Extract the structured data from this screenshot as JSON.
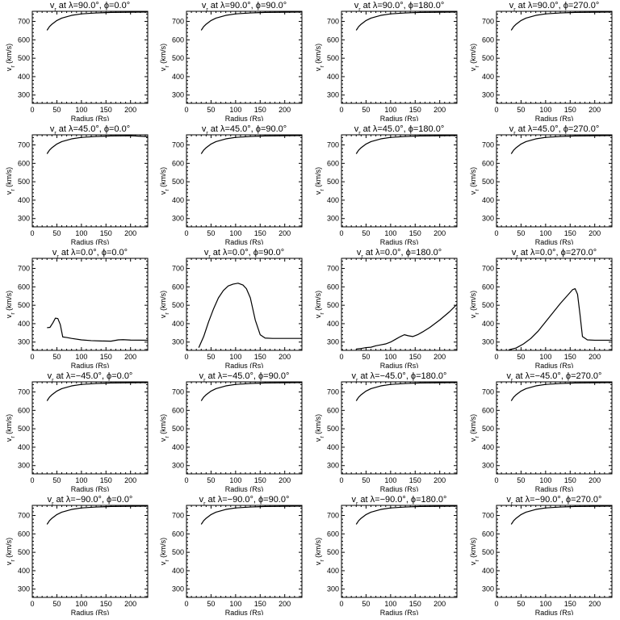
{
  "common": {
    "xlabel": "Radius (Rs)",
    "ylabel": "v<sub>r</sub> (km/s)",
    "xticks": [
      0,
      50,
      100,
      150,
      200
    ],
    "yticks": [
      300,
      400,
      500,
      600,
      700
    ],
    "xlim": [
      0,
      235
    ],
    "ylim": [
      255,
      755
    ]
  },
  "chart_data": [
    {
      "type": "line",
      "title": "v<sub>r</sub> at λ=90.0°, ϕ=0.0°",
      "x": [
        30,
        35,
        40,
        50,
        60,
        80,
        100,
        130,
        160,
        200,
        235
      ],
      "y": [
        652,
        672,
        685,
        705,
        718,
        733,
        741,
        746,
        749,
        750,
        751
      ]
    },
    {
      "type": "line",
      "title": "v<sub>r</sub> at λ=90.0°, ϕ=90.0°",
      "x": [
        30,
        35,
        40,
        50,
        60,
        80,
        100,
        130,
        160,
        200,
        235
      ],
      "y": [
        652,
        672,
        685,
        705,
        718,
        733,
        741,
        746,
        749,
        750,
        751
      ]
    },
    {
      "type": "line",
      "title": "v<sub>r</sub> at λ=90.0°, ϕ=180.0°",
      "x": [
        30,
        35,
        40,
        50,
        60,
        80,
        100,
        130,
        160,
        200,
        235
      ],
      "y": [
        652,
        672,
        685,
        705,
        718,
        733,
        741,
        746,
        749,
        750,
        751
      ]
    },
    {
      "type": "line",
      "title": "v<sub>r</sub> at λ=90.0°, ϕ=270.0°",
      "x": [
        30,
        35,
        40,
        50,
        60,
        80,
        100,
        130,
        160,
        200,
        235
      ],
      "y": [
        652,
        672,
        685,
        705,
        718,
        733,
        741,
        746,
        749,
        750,
        751
      ]
    },
    {
      "type": "line",
      "title": "v<sub>r</sub> at λ=45.0°, ϕ=0.0°",
      "x": [
        30,
        35,
        40,
        50,
        60,
        80,
        100,
        130,
        160,
        200,
        235
      ],
      "y": [
        652,
        672,
        685,
        705,
        718,
        733,
        741,
        746,
        749,
        750,
        745
      ]
    },
    {
      "type": "line",
      "title": "v<sub>r</sub> at λ=45.0°, ϕ=90.0°",
      "x": [
        30,
        35,
        40,
        50,
        60,
        80,
        100,
        130,
        160,
        200,
        235
      ],
      "y": [
        652,
        672,
        685,
        705,
        718,
        733,
        741,
        746,
        749,
        750,
        751
      ]
    },
    {
      "type": "line",
      "title": "v<sub>r</sub> at λ=45.0°, ϕ=180.0°",
      "x": [
        30,
        35,
        40,
        50,
        60,
        80,
        100,
        130,
        160,
        200,
        235
      ],
      "y": [
        652,
        672,
        685,
        705,
        718,
        733,
        741,
        746,
        749,
        750,
        751
      ]
    },
    {
      "type": "line",
      "title": "v<sub>r</sub> at λ=45.0°, ϕ=270.0°",
      "x": [
        30,
        35,
        40,
        50,
        60,
        80,
        100,
        130,
        160,
        200,
        235
      ],
      "y": [
        652,
        672,
        685,
        705,
        718,
        733,
        741,
        746,
        749,
        750,
        751
      ]
    },
    {
      "type": "line",
      "title": "v<sub>r</sub> at λ=0.0°, ϕ=0.0°",
      "x": [
        30,
        36,
        42,
        47,
        52,
        57,
        62,
        70,
        80,
        100,
        120,
        140,
        160,
        175,
        185,
        200,
        235
      ],
      "y": [
        378,
        380,
        405,
        430,
        428,
        395,
        328,
        325,
        320,
        312,
        308,
        306,
        305,
        312,
        313,
        311,
        310
      ]
    },
    {
      "type": "line",
      "title": "v<sub>r</sub> at λ=0.0°, ϕ=90.0°",
      "x": [
        25,
        35,
        45,
        55,
        65,
        75,
        85,
        95,
        105,
        115,
        122,
        130,
        140,
        150,
        160,
        175,
        200,
        235
      ],
      "y": [
        270,
        330,
        410,
        480,
        540,
        580,
        605,
        615,
        620,
        610,
        590,
        540,
        420,
        340,
        322,
        320,
        320,
        320
      ]
    },
    {
      "type": "line",
      "title": "v<sub>r</sub> at λ=0.0°, ϕ=180.0°",
      "x": [
        30,
        40,
        50,
        60,
        70,
        80,
        90,
        100,
        110,
        120,
        128,
        135,
        145,
        155,
        165,
        180,
        200,
        220,
        235
      ],
      "y": [
        262,
        265,
        270,
        272,
        280,
        285,
        290,
        300,
        315,
        330,
        340,
        335,
        330,
        340,
        355,
        380,
        420,
        465,
        505
      ]
    },
    {
      "type": "line",
      "title": "v<sub>r</sub> at λ=0.0°, ϕ=270.0°",
      "x": [
        25,
        40,
        55,
        70,
        85,
        100,
        115,
        130,
        145,
        155,
        160,
        165,
        170,
        175,
        185,
        200,
        235
      ],
      "y": [
        258,
        268,
        290,
        320,
        360,
        410,
        460,
        510,
        555,
        585,
        590,
        560,
        450,
        330,
        312,
        310,
        310
      ]
    },
    {
      "type": "line",
      "title": "v<sub>r</sub> at λ=−45.0°, ϕ=0.0°",
      "x": [
        30,
        35,
        40,
        50,
        60,
        80,
        100,
        130,
        160,
        200,
        235
      ],
      "y": [
        652,
        672,
        685,
        705,
        718,
        733,
        741,
        746,
        749,
        750,
        751
      ]
    },
    {
      "type": "line",
      "title": "v<sub>r</sub> at λ=−45.0°, ϕ=90.0°",
      "x": [
        30,
        35,
        40,
        50,
        60,
        80,
        100,
        130,
        160,
        200,
        235
      ],
      "y": [
        652,
        672,
        685,
        705,
        718,
        733,
        741,
        746,
        749,
        750,
        751
      ]
    },
    {
      "type": "line",
      "title": "v<sub>r</sub> at λ=−45.0°, ϕ=180.0°",
      "x": [
        30,
        35,
        40,
        50,
        60,
        80,
        100,
        130,
        160,
        200,
        235
      ],
      "y": [
        652,
        672,
        685,
        705,
        718,
        733,
        741,
        746,
        749,
        750,
        751
      ]
    },
    {
      "type": "line",
      "title": "v<sub>r</sub> at λ=−45.0°, ϕ=270.0°",
      "x": [
        30,
        35,
        40,
        50,
        60,
        80,
        100,
        130,
        160,
        200,
        235
      ],
      "y": [
        652,
        672,
        685,
        705,
        718,
        733,
        741,
        746,
        749,
        750,
        751
      ]
    },
    {
      "type": "line",
      "title": "v<sub>r</sub> at λ=−90.0°, ϕ=0.0°",
      "x": [
        30,
        35,
        40,
        50,
        60,
        80,
        100,
        130,
        160,
        200,
        235
      ],
      "y": [
        652,
        672,
        685,
        705,
        718,
        733,
        741,
        746,
        749,
        750,
        751
      ]
    },
    {
      "type": "line",
      "title": "v<sub>r</sub> at λ=−90.0°, ϕ=90.0°",
      "x": [
        30,
        35,
        40,
        50,
        60,
        80,
        100,
        130,
        160,
        200,
        235
      ],
      "y": [
        652,
        672,
        685,
        705,
        718,
        733,
        741,
        746,
        749,
        750,
        751
      ]
    },
    {
      "type": "line",
      "title": "v<sub>r</sub> at λ=−90.0°, ϕ=180.0°",
      "x": [
        30,
        35,
        40,
        50,
        60,
        80,
        100,
        130,
        160,
        200,
        235
      ],
      "y": [
        652,
        672,
        685,
        705,
        718,
        733,
        741,
        746,
        749,
        750,
        751
      ]
    },
    {
      "type": "line",
      "title": "v<sub>r</sub> at λ=−90.0°, ϕ=270.0°",
      "x": [
        30,
        35,
        40,
        50,
        60,
        80,
        100,
        130,
        160,
        200,
        235
      ],
      "y": [
        652,
        672,
        685,
        705,
        718,
        733,
        741,
        746,
        749,
        750,
        751
      ]
    }
  ]
}
